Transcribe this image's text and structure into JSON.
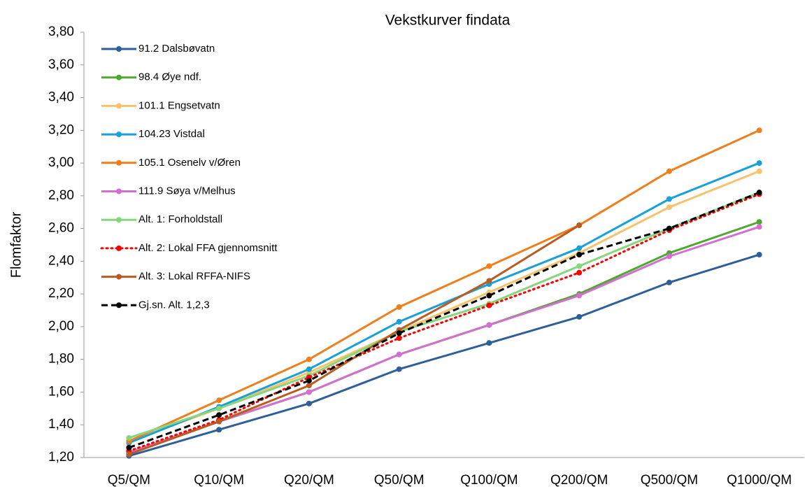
{
  "chart_data": {
    "type": "line",
    "title": "Vekstkurver findata",
    "y_label": "Flomfaktor",
    "categories": [
      "Q5/QM",
      "Q10/QM",
      "Q20/QM",
      "Q50/QM",
      "Q100/QM",
      "Q200/QM",
      "Q500/QM",
      "Q1000/QM"
    ],
    "ylim": [
      1.2,
      3.8
    ],
    "yticks": [
      {
        "value": 1.2,
        "label": "1,20"
      },
      {
        "value": 1.4,
        "label": "1,40"
      },
      {
        "value": 1.6,
        "label": "1,60"
      },
      {
        "value": 1.8,
        "label": "1,80"
      },
      {
        "value": 2.0,
        "label": "2,00"
      },
      {
        "value": 2.2,
        "label": "2,20"
      },
      {
        "value": 2.4,
        "label": "2,40"
      },
      {
        "value": 2.6,
        "label": "2,60"
      },
      {
        "value": 2.8,
        "label": "2,80"
      },
      {
        "value": 3.0,
        "label": "3,00"
      },
      {
        "value": 3.2,
        "label": "3,20"
      },
      {
        "value": 3.4,
        "label": "3,40"
      },
      {
        "value": 3.6,
        "label": "3,60"
      },
      {
        "value": 3.8,
        "label": "3,80"
      }
    ],
    "grid": false,
    "legend": "upper left",
    "series": [
      {
        "name": "91.2 Dalsbøvatn",
        "color": "#2e5f99",
        "values": [
          1.21,
          1.37,
          1.53,
          1.74,
          1.9,
          2.06,
          2.27,
          2.44
        ]
      },
      {
        "name": "98.4 Øye ndf.",
        "color": "#4ea72e",
        "values": [
          1.23,
          1.42,
          1.6,
          1.83,
          2.01,
          2.2,
          2.45,
          2.64
        ]
      },
      {
        "name": "101.1 Engsetvatn",
        "color": "#f6c26b",
        "values": [
          1.3,
          1.5,
          1.72,
          1.97,
          2.21,
          2.45,
          2.73,
          2.95
        ]
      },
      {
        "name": "104.23 Vistdal",
        "color": "#18a1d8",
        "values": [
          1.29,
          1.51,
          1.74,
          2.03,
          2.26,
          2.48,
          2.78,
          3.0
        ]
      },
      {
        "name": "105.1 Osenelv v/Øren",
        "color": "#ef7f1a",
        "values": [
          1.3,
          1.55,
          1.8,
          2.12,
          2.37,
          2.62,
          2.95,
          3.2
        ]
      },
      {
        "name": "111.9 Søya v/Melhus",
        "color": "#d36fd1",
        "values": [
          1.23,
          1.42,
          1.6,
          1.83,
          2.01,
          2.19,
          2.43,
          2.61
        ]
      },
      {
        "name": "Alt. 1: Forholdstall",
        "color": "#86d67e",
        "values": [
          1.32,
          1.5,
          1.7,
          1.97,
          2.14,
          2.37,
          2.6,
          2.82
        ]
      },
      {
        "name": "Alt. 2: Lokal FFA gjennomsnitt",
        "color": "#ff0000",
        "dash": "dotted",
        "values": [
          1.24,
          1.43,
          1.69,
          1.93,
          2.13,
          2.33,
          2.59,
          2.81
        ]
      },
      {
        "name": "Alt. 3: Lokal RFFA-NIFS",
        "color": "#b85c20",
        "values": [
          1.22,
          1.42,
          1.64,
          1.98,
          2.28,
          2.62,
          null,
          null
        ]
      },
      {
        "name": "Gj.sn. Alt. 1,2,3",
        "color": "#000000",
        "dash": "dashed",
        "values": [
          1.26,
          1.46,
          1.67,
          1.96,
          2.19,
          2.44,
          2.6,
          2.82
        ]
      }
    ]
  }
}
